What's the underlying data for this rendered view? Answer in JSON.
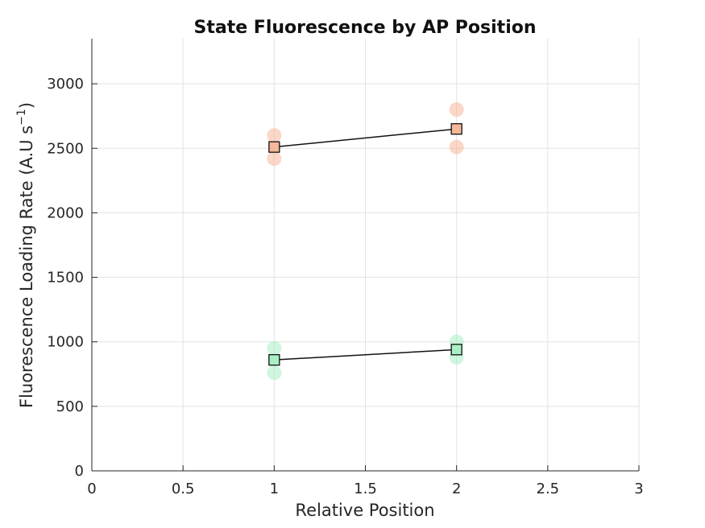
{
  "chart_data": {
    "type": "scatter",
    "title": "State Fluorescence by AP Position",
    "xlabel": "Relative Position",
    "ylabel": {
      "prefix": "Fluorescence Loading Rate (A.U s",
      "exponent": "−1",
      "suffix": ")"
    },
    "xlim": [
      0,
      3
    ],
    "ylim": [
      0,
      3350
    ],
    "xticks": [
      0,
      0.5,
      1,
      1.5,
      2,
      2.5,
      3
    ],
    "xtick_labels": [
      "0",
      "0.5",
      "1",
      "1.5",
      "2",
      "2.5",
      "3"
    ],
    "yticks": [
      0,
      500,
      1000,
      1500,
      2000,
      2500,
      3000
    ],
    "ytick_labels": [
      "0",
      "500",
      "1000",
      "1500",
      "2000",
      "2500",
      "3000"
    ],
    "grid": true,
    "series": [
      {
        "color": "#f7b79a",
        "points": [
          {
            "x": 1,
            "y": 2600
          },
          {
            "x": 1,
            "y": 2420
          },
          {
            "x": 2,
            "y": 2800
          },
          {
            "x": 2,
            "y": 2510
          }
        ],
        "mean": [
          {
            "x": 1,
            "y": 2510
          },
          {
            "x": 2,
            "y": 2650
          }
        ]
      },
      {
        "color": "#a8efc4",
        "points": [
          {
            "x": 1,
            "y": 950
          },
          {
            "x": 1,
            "y": 760
          },
          {
            "x": 2,
            "y": 1000
          },
          {
            "x": 2,
            "y": 880
          }
        ],
        "mean": [
          {
            "x": 1,
            "y": 860
          },
          {
            "x": 2,
            "y": 940
          }
        ]
      }
    ]
  }
}
